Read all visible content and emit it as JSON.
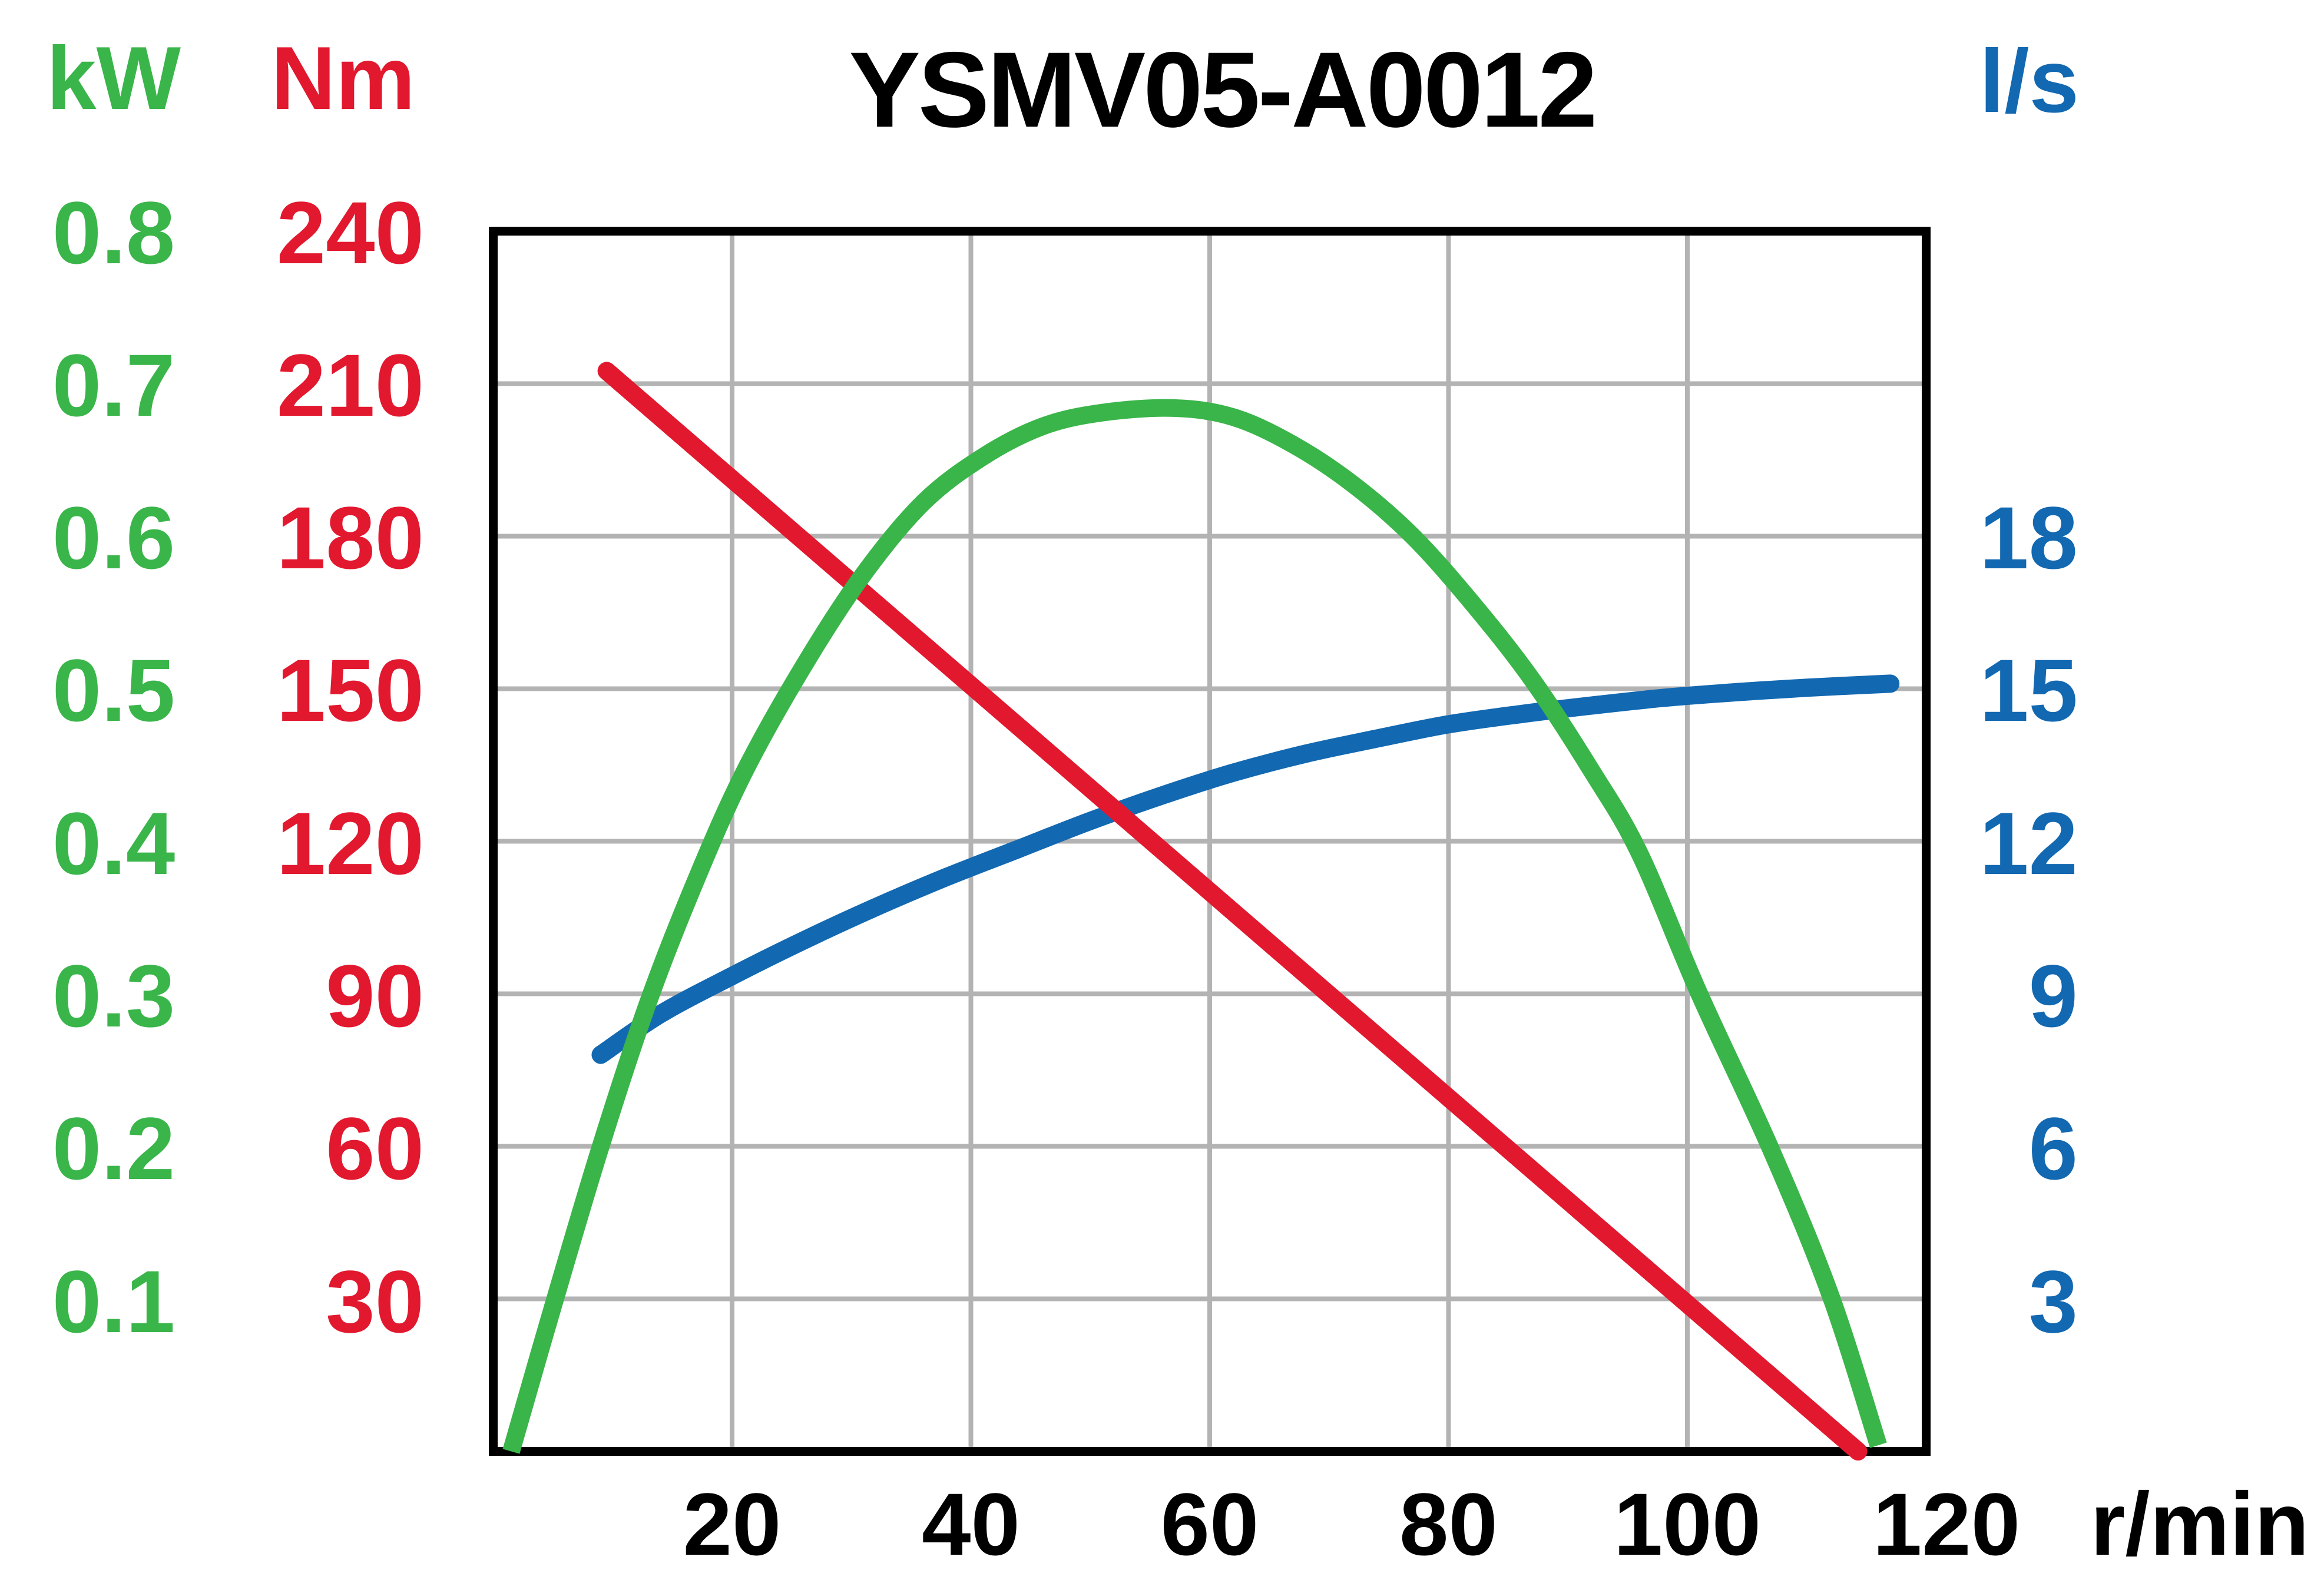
{
  "title": "YSMV05-A0012",
  "colors": {
    "background": "#ffffff",
    "frame": "#000000",
    "grid": "#b3b3b3",
    "power_green": "#3ab54a",
    "torque_red": "#e2182f",
    "flow_blue": "#1268b1",
    "text_black": "#000000"
  },
  "axes": {
    "power": {
      "label": "kW",
      "color": "#3ab54a",
      "ticks": [
        "0.8",
        "0.7",
        "0.6",
        "0.5",
        "0.4",
        "0.3",
        "0.2",
        "0.1"
      ]
    },
    "torque": {
      "label": "Nm",
      "color": "#e2182f",
      "ticks": [
        "240",
        "210",
        "180",
        "150",
        "120",
        "90",
        "60",
        "30"
      ]
    },
    "flow": {
      "label": "l/s",
      "color": "#1268b1",
      "ticks": [
        "18",
        "15",
        "12",
        "9",
        "6",
        "3"
      ]
    },
    "speed": {
      "label": "r/min",
      "color": "#000000",
      "ticks": [
        "20",
        "40",
        "60",
        "80",
        "100",
        "120"
      ]
    }
  },
  "chart_data": {
    "type": "line",
    "title": "YSMV05-A0012",
    "grid": true,
    "legend_position": "none",
    "x_axis": {
      "label": "r/min",
      "range": [
        0,
        120
      ],
      "gridline_step": 20,
      "tick_labels": [
        20,
        40,
        60,
        80,
        100,
        120
      ]
    },
    "y_axes": [
      {
        "id": "power",
        "label": "kW",
        "side": "left-outer",
        "range": [
          0,
          0.8
        ],
        "gridline_step": 0.1,
        "tick_labels": [
          0.8,
          0.7,
          0.6,
          0.5,
          0.4,
          0.3,
          0.2,
          0.1
        ]
      },
      {
        "id": "torque",
        "label": "Nm",
        "side": "left-inner",
        "range": [
          0,
          240
        ],
        "gridline_step": 30,
        "tick_labels": [
          240,
          210,
          180,
          150,
          120,
          90,
          60,
          30
        ]
      },
      {
        "id": "flow",
        "label": "l/s",
        "side": "right",
        "range": [
          0,
          24
        ],
        "gridline_step": 3,
        "tick_labels": [
          18,
          15,
          12,
          9,
          6,
          3
        ]
      }
    ],
    "series": [
      {
        "name": "flow",
        "unit": "l/s",
        "color": "#1268b1",
        "y_axis": "flow",
        "linecap": "round",
        "points": [
          [
            9,
            7.8
          ],
          [
            14,
            8.6
          ],
          [
            20,
            9.35
          ],
          [
            26,
            10.05
          ],
          [
            32,
            10.7
          ],
          [
            38,
            11.3
          ],
          [
            44,
            11.85
          ],
          [
            50,
            12.4
          ],
          [
            56,
            12.9
          ],
          [
            62,
            13.35
          ],
          [
            68,
            13.72
          ],
          [
            74,
            14.02
          ],
          [
            80,
            14.3
          ],
          [
            86,
            14.5
          ],
          [
            92,
            14.67
          ],
          [
            98,
            14.82
          ],
          [
            104,
            14.93
          ],
          [
            110,
            15.02
          ],
          [
            117,
            15.1
          ]
        ]
      },
      {
        "name": "torque",
        "unit": "Nm",
        "color": "#e2182f",
        "y_axis": "torque",
        "linecap": "round",
        "points": [
          [
            9.5,
            212.5
          ],
          [
            114.3,
            0
          ]
        ]
      },
      {
        "name": "power",
        "unit": "kW",
        "color": "#3ab54a",
        "y_axis": "power",
        "linecap": "butt",
        "points": [
          [
            1.5,
            0
          ],
          [
            5,
            0.095
          ],
          [
            9,
            0.2
          ],
          [
            13,
            0.295
          ],
          [
            17,
            0.375
          ],
          [
            21,
            0.445
          ],
          [
            26,
            0.515
          ],
          [
            31,
            0.575
          ],
          [
            36,
            0.622
          ],
          [
            41,
            0.652
          ],
          [
            46,
            0.672
          ],
          [
            51,
            0.681
          ],
          [
            57,
            0.684
          ],
          [
            62,
            0.678
          ],
          [
            67,
            0.66
          ],
          [
            72,
            0.634
          ],
          [
            77,
            0.6
          ],
          [
            82,
            0.556
          ],
          [
            87,
            0.506
          ],
          [
            92,
            0.446
          ],
          [
            96,
            0.392
          ],
          [
            101,
            0.3
          ],
          [
            107,
            0.198
          ],
          [
            112,
            0.102
          ],
          [
            116,
            0.004
          ]
        ]
      }
    ]
  }
}
